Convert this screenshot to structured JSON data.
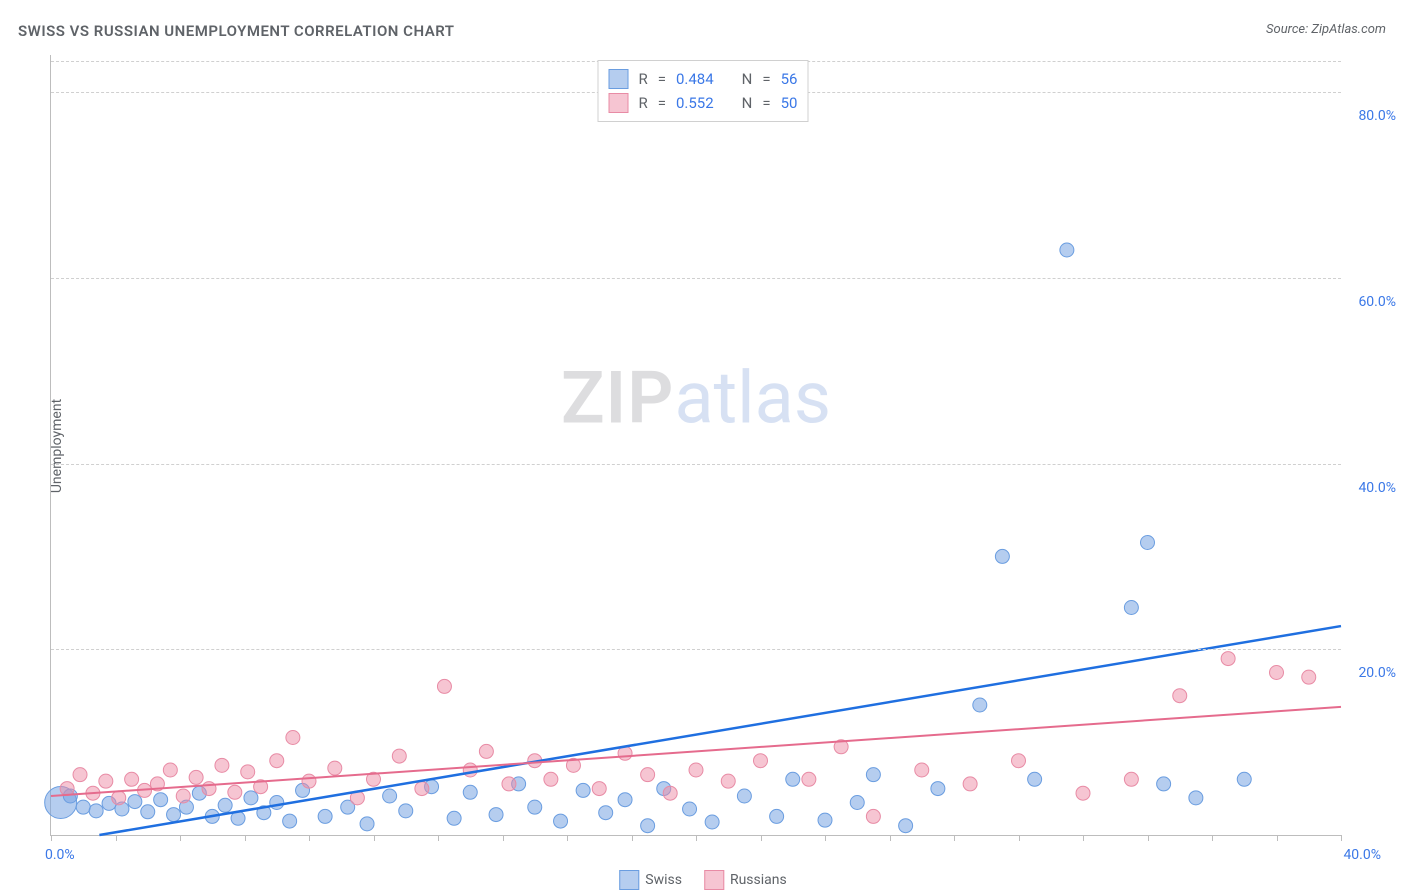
{
  "title": "SWISS VS RUSSIAN UNEMPLOYMENT CORRELATION CHART",
  "source": "Source: ZipAtlas.com",
  "watermark_zip": "ZIP",
  "watermark_atlas": "atlas",
  "ylabel": "Unemployment",
  "chart": {
    "type": "scatter",
    "xlim": [
      0,
      40
    ],
    "ylim": [
      0,
      84
    ],
    "x_axis_label_min": "0.0%",
    "x_axis_label_max": "40.0%",
    "y_grid": [
      {
        "value": 20,
        "label": "20.0%"
      },
      {
        "value": 40,
        "label": "40.0%"
      },
      {
        "value": 60,
        "label": "60.0%"
      },
      {
        "value": 80,
        "label": "80.0%"
      }
    ],
    "xtick_positions": [
      0,
      2,
      4,
      6,
      8,
      10,
      12,
      14,
      16,
      18,
      20,
      22,
      24,
      26,
      28,
      30,
      32,
      34,
      36,
      38,
      40
    ],
    "background_color": "#ffffff",
    "grid_color": "#d0d0d0",
    "axis_color": "#bdbdbd",
    "tick_label_color": "#3b78e7",
    "series": [
      {
        "name": "Swiss",
        "r_value": "0.484",
        "n_value": "56",
        "fill_color": "rgba(121,164,226,0.55)",
        "stroke_color": "#6a9de0",
        "line_color": "#1f6fe0",
        "line_width": 2.5,
        "trend": {
          "x1": 1.5,
          "y1": 0,
          "x2": 40,
          "y2": 22.5
        },
        "marker_radius": 7,
        "points": [
          {
            "x": 0.3,
            "y": 3.5,
            "r": 16
          },
          {
            "x": 0.6,
            "y": 4.2
          },
          {
            "x": 1.0,
            "y": 3.0
          },
          {
            "x": 1.4,
            "y": 2.6
          },
          {
            "x": 1.8,
            "y": 3.4
          },
          {
            "x": 2.2,
            "y": 2.8
          },
          {
            "x": 2.6,
            "y": 3.6
          },
          {
            "x": 3.0,
            "y": 2.5
          },
          {
            "x": 3.4,
            "y": 3.8
          },
          {
            "x": 3.8,
            "y": 2.2
          },
          {
            "x": 4.2,
            "y": 3.0
          },
          {
            "x": 4.6,
            "y": 4.5
          },
          {
            "x": 5.0,
            "y": 2.0
          },
          {
            "x": 5.4,
            "y": 3.2
          },
          {
            "x": 5.8,
            "y": 1.8
          },
          {
            "x": 6.2,
            "y": 4.0
          },
          {
            "x": 6.6,
            "y": 2.4
          },
          {
            "x": 7.0,
            "y": 3.5
          },
          {
            "x": 7.4,
            "y": 1.5
          },
          {
            "x": 7.8,
            "y": 4.8
          },
          {
            "x": 8.5,
            "y": 2.0
          },
          {
            "x": 9.2,
            "y": 3.0
          },
          {
            "x": 9.8,
            "y": 1.2
          },
          {
            "x": 10.5,
            "y": 4.2
          },
          {
            "x": 11.0,
            "y": 2.6
          },
          {
            "x": 11.8,
            "y": 5.2
          },
          {
            "x": 12.5,
            "y": 1.8
          },
          {
            "x": 13.0,
            "y": 4.6
          },
          {
            "x": 13.8,
            "y": 2.2
          },
          {
            "x": 14.5,
            "y": 5.5
          },
          {
            "x": 15.0,
            "y": 3.0
          },
          {
            "x": 15.8,
            "y": 1.5
          },
          {
            "x": 16.5,
            "y": 4.8
          },
          {
            "x": 17.2,
            "y": 2.4
          },
          {
            "x": 17.8,
            "y": 3.8
          },
          {
            "x": 18.5,
            "y": 1.0
          },
          {
            "x": 19.0,
            "y": 5.0
          },
          {
            "x": 19.8,
            "y": 2.8
          },
          {
            "x": 20.5,
            "y": 1.4
          },
          {
            "x": 21.5,
            "y": 4.2
          },
          {
            "x": 22.5,
            "y": 2.0
          },
          {
            "x": 23.0,
            "y": 6.0
          },
          {
            "x": 24.0,
            "y": 1.6
          },
          {
            "x": 25.0,
            "y": 3.5
          },
          {
            "x": 25.5,
            "y": 6.5
          },
          {
            "x": 26.5,
            "y": 1.0
          },
          {
            "x": 27.5,
            "y": 5.0
          },
          {
            "x": 28.8,
            "y": 14.0
          },
          {
            "x": 29.5,
            "y": 30.0
          },
          {
            "x": 30.5,
            "y": 6.0
          },
          {
            "x": 31.5,
            "y": 63.0
          },
          {
            "x": 33.5,
            "y": 24.5
          },
          {
            "x": 34.0,
            "y": 31.5
          },
          {
            "x": 34.5,
            "y": 5.5
          },
          {
            "x": 35.5,
            "y": 4.0
          },
          {
            "x": 37.0,
            "y": 6.0
          }
        ]
      },
      {
        "name": "Russians",
        "r_value": "0.552",
        "n_value": "50",
        "fill_color": "rgba(238,140,165,0.5)",
        "stroke_color": "#e88ba5",
        "line_color": "#e56b8d",
        "line_width": 2,
        "trend": {
          "x1": 0,
          "y1": 4.2,
          "x2": 40,
          "y2": 13.8
        },
        "marker_radius": 7,
        "points": [
          {
            "x": 0.5,
            "y": 5.0
          },
          {
            "x": 0.9,
            "y": 6.5
          },
          {
            "x": 1.3,
            "y": 4.5
          },
          {
            "x": 1.7,
            "y": 5.8
          },
          {
            "x": 2.1,
            "y": 4.0
          },
          {
            "x": 2.5,
            "y": 6.0
          },
          {
            "x": 2.9,
            "y": 4.8
          },
          {
            "x": 3.3,
            "y": 5.5
          },
          {
            "x": 3.7,
            "y": 7.0
          },
          {
            "x": 4.1,
            "y": 4.2
          },
          {
            "x": 4.5,
            "y": 6.2
          },
          {
            "x": 4.9,
            "y": 5.0
          },
          {
            "x": 5.3,
            "y": 7.5
          },
          {
            "x": 5.7,
            "y": 4.6
          },
          {
            "x": 6.1,
            "y": 6.8
          },
          {
            "x": 6.5,
            "y": 5.2
          },
          {
            "x": 7.0,
            "y": 8.0
          },
          {
            "x": 7.5,
            "y": 10.5
          },
          {
            "x": 8.0,
            "y": 5.8
          },
          {
            "x": 8.8,
            "y": 7.2
          },
          {
            "x": 9.5,
            "y": 4.0
          },
          {
            "x": 10.0,
            "y": 6.0
          },
          {
            "x": 10.8,
            "y": 8.5
          },
          {
            "x": 11.5,
            "y": 5.0
          },
          {
            "x": 12.2,
            "y": 16.0
          },
          {
            "x": 13.0,
            "y": 7.0
          },
          {
            "x": 13.5,
            "y": 9.0
          },
          {
            "x": 14.2,
            "y": 5.5
          },
          {
            "x": 15.0,
            "y": 8.0
          },
          {
            "x": 15.5,
            "y": 6.0
          },
          {
            "x": 16.2,
            "y": 7.5
          },
          {
            "x": 17.0,
            "y": 5.0
          },
          {
            "x": 17.8,
            "y": 8.8
          },
          {
            "x": 18.5,
            "y": 6.5
          },
          {
            "x": 19.2,
            "y": 4.5
          },
          {
            "x": 20.0,
            "y": 7.0
          },
          {
            "x": 21.0,
            "y": 5.8
          },
          {
            "x": 22.0,
            "y": 8.0
          },
          {
            "x": 23.5,
            "y": 6.0
          },
          {
            "x": 24.5,
            "y": 9.5
          },
          {
            "x": 25.5,
            "y": 2.0
          },
          {
            "x": 27.0,
            "y": 7.0
          },
          {
            "x": 28.5,
            "y": 5.5
          },
          {
            "x": 30.0,
            "y": 8.0
          },
          {
            "x": 32.0,
            "y": 4.5
          },
          {
            "x": 33.5,
            "y": 6.0
          },
          {
            "x": 35.0,
            "y": 15.0
          },
          {
            "x": 36.5,
            "y": 19.0
          },
          {
            "x": 38.0,
            "y": 17.5
          },
          {
            "x": 39.0,
            "y": 17.0
          }
        ]
      }
    ]
  },
  "legend_top_prefix_r": "R",
  "legend_top_prefix_n": "N",
  "legend_top_equals": "="
}
